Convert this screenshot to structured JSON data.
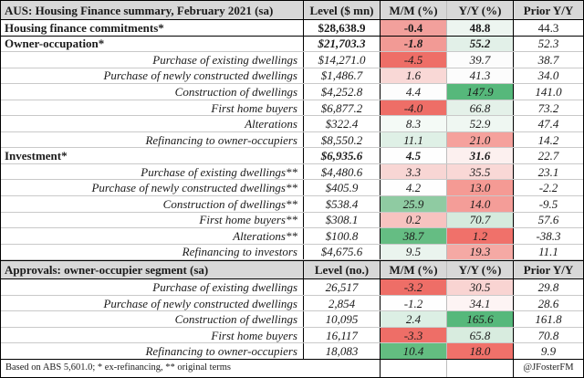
{
  "colors": {
    "header_bg": "#d8d8d8",
    "strong_red": "#ee6e67",
    "strong_green": "#56b87b",
    "grid_gray": "#c9c9c9"
  },
  "chart_data": {
    "type": "table",
    "title": "AUS: Housing Finance summary, February 2021 (sa)",
    "footnote": "Based on ABS 5,601.0; * ex-refinancing, ** original terms",
    "credit": "@JFosterFM",
    "sections": [
      {
        "header": {
          "title": "AUS: Housing Finance summary, February 2021 (sa)",
          "columns": [
            "Level ($ mn)",
            "M/M (%)",
            "Y/Y (%)",
            "Prior Y/Y"
          ]
        },
        "rows": [
          {
            "label": "Housing finance commitments*",
            "style": "total",
            "level": "$28,638.9",
            "mm": "-0.4",
            "mm_bg": "#f2a09c",
            "yy": "48.8",
            "yy_bg": "#edf5f0",
            "prior": "44.3"
          },
          {
            "label": "Owner-occupation*",
            "style": "section",
            "level": "$21,703.3",
            "mm": "-1.8",
            "mm_bg": "#f29a95",
            "yy": "55.2",
            "yy_bg": "#e2f0e8",
            "prior": "52.3"
          },
          {
            "label": "Purchase of existing dwellings",
            "style": "sub",
            "level": "$14,271.0",
            "mm": "-4.5",
            "mm_bg": "#ee6e67",
            "yy": "39.7",
            "yy_bg": "#fcfcfc",
            "prior": "38.7"
          },
          {
            "label": "Purchase of newly constructed dwellings",
            "style": "sub",
            "level": "$1,486.7",
            "mm": "1.6",
            "mm_bg": "#f9d8d6",
            "yy": "41.3",
            "yy_bg": "#fcfcfc",
            "prior": "34.0"
          },
          {
            "label": "Construction of dwellings",
            "style": "sub",
            "level": "$4,252.8",
            "mm": "4.4",
            "mm_bg": "#fdfdfd",
            "yy": "147.9",
            "yy_bg": "#56b87b",
            "prior": "141.0"
          },
          {
            "label": "First home buyers",
            "style": "sub",
            "level": "$6,877.2",
            "mm": "-4.0",
            "mm_bg": "#ee6e67",
            "yy": "66.8",
            "yy_bg": "#e4f1e9",
            "prior": "73.2"
          },
          {
            "label": "Alterations",
            "style": "sub",
            "level": "$322.4",
            "mm": "8.3",
            "mm_bg": "#f4faf6",
            "yy": "52.9",
            "yy_bg": "#eff7f2",
            "prior": "47.4"
          },
          {
            "label": "Refinancing to owner-occupiers",
            "style": "sub",
            "level": "$8,550.2",
            "mm": "11.1",
            "mm_bg": "#dff0e6",
            "yy": "21.0",
            "yy_bg": "#f5a19c",
            "prior": "14.2"
          },
          {
            "label": "Investment*",
            "style": "section",
            "level": "$6,935.6",
            "mm": "4.5",
            "mm_bg": "#fefefe",
            "yy": "31.6",
            "yy_bg": "#fcf0ef",
            "prior": "22.7"
          },
          {
            "label": "Purchase of existing dwellings**",
            "style": "sub",
            "level": "$4,480.6",
            "mm": "3.3",
            "mm_bg": "#f8d6d4",
            "yy": "35.5",
            "yy_bg": "#f9d8d6",
            "prior": "23.1"
          },
          {
            "label": "Purchase of newly constructed dwellings**",
            "style": "sub",
            "level": "$405.9",
            "mm": "4.2",
            "mm_bg": "#fefefe",
            "yy": "13.0",
            "yy_bg": "#f59a94",
            "prior": "-2.2"
          },
          {
            "label": "Construction of dwellings**",
            "style": "sub",
            "level": "$538.4",
            "mm": "25.9",
            "mm_bg": "#8fcba2",
            "yy": "14.0",
            "yy_bg": "#f49d98",
            "prior": "-9.5"
          },
          {
            "label": "First home buyers**",
            "style": "sub",
            "level": "$308.1",
            "mm": "0.2",
            "mm_bg": "#f7c3c0",
            "yy": "70.7",
            "yy_bg": "#d5ebdd",
            "prior": "57.6"
          },
          {
            "label": "Alterations**",
            "style": "sub",
            "level": "$100.8",
            "mm": "38.7",
            "mm_bg": "#65bd83",
            "yy": "1.2",
            "yy_bg": "#f0716a",
            "prior": "-38.3"
          },
          {
            "label": "Refinancing to investors",
            "style": "sub",
            "level": "$4,675.6",
            "mm": "9.5",
            "mm_bg": "#eaf4ee",
            "yy": "19.3",
            "yy_bg": "#f5a9a4",
            "prior": "11.1"
          }
        ]
      },
      {
        "header": {
          "title": "Approvals: owner-occupier segment (sa)",
          "columns": [
            "Level (no.)",
            "M/M (%)",
            "Y/Y (%)",
            "Prior Y/Y"
          ]
        },
        "rows": [
          {
            "label": "Purchase of existing dwellings",
            "style": "sub",
            "level": "26,517",
            "mm": "-3.2",
            "mm_bg": "#ee6e67",
            "yy": "30.5",
            "yy_bg": "#f9d4d2",
            "prior": "29.8"
          },
          {
            "label": "Purchase of newly constructed dwellings",
            "style": "sub",
            "level": "2,854",
            "mm": "-1.2",
            "mm_bg": "#fefefe",
            "yy": "34.1",
            "yy_bg": "#fdf4f4",
            "prior": "28.6"
          },
          {
            "label": "Construction of dwellings",
            "style": "sub",
            "level": "10,095",
            "mm": "2.4",
            "mm_bg": "#dcefe4",
            "yy": "165.6",
            "yy_bg": "#56b87b",
            "prior": "161.8"
          },
          {
            "label": "First home buyers",
            "style": "sub",
            "level": "16,117",
            "mm": "-3.3",
            "mm_bg": "#ee6e67",
            "yy": "65.8",
            "yy_bg": "#d8ecdf",
            "prior": "70.8"
          },
          {
            "label": "Refinancing to owner-occupiers",
            "style": "sub",
            "level": "18,083",
            "mm": "10.4",
            "mm_bg": "#63bd81",
            "yy": "18.0",
            "yy_bg": "#f0716a",
            "prior": "9.9"
          }
        ]
      }
    ]
  }
}
